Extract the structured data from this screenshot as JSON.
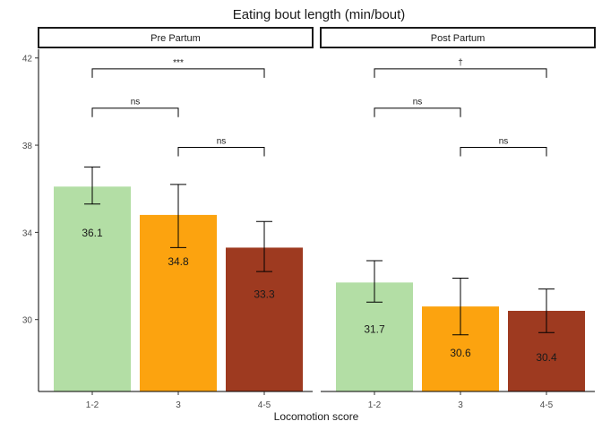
{
  "chart_data": {
    "type": "bar",
    "title": "Eating bout length (min/bout)",
    "xlabel": "Locomotion score",
    "ylabel": "",
    "ylim": [
      26.7,
      42.4
    ],
    "yticks": [
      30,
      34,
      38,
      42
    ],
    "grid": false,
    "categories": [
      "1-2",
      "3",
      "4-5"
    ],
    "colors": {
      "1-2": "#b3dea5",
      "3": "#fca30f",
      "4-5": "#9e3a20"
    },
    "panels": [
      {
        "name": "Pre Partum",
        "values": [
          36.1,
          34.8,
          33.3
        ],
        "labels": [
          "36.1",
          "34.8",
          "33.3"
        ],
        "error_low": [
          35.3,
          33.3,
          32.2
        ],
        "error_high": [
          37.0,
          36.2,
          34.5
        ],
        "comparisons": [
          {
            "from": "1-2",
            "to": "3",
            "label": "ns",
            "level": 39.7
          },
          {
            "from": "3",
            "to": "4-5",
            "label": "ns",
            "level": 37.9
          },
          {
            "from": "1-2",
            "to": "4-5",
            "label": "***",
            "level": 41.5
          }
        ]
      },
      {
        "name": "Post Partum",
        "values": [
          31.7,
          30.6,
          30.4
        ],
        "labels": [
          "31.7",
          "30.6",
          "30.4"
        ],
        "error_low": [
          30.8,
          29.3,
          29.4
        ],
        "error_high": [
          32.7,
          31.9,
          31.4
        ],
        "comparisons": [
          {
            "from": "1-2",
            "to": "3",
            "label": "ns",
            "level": 39.7
          },
          {
            "from": "3",
            "to": "4-5",
            "label": "ns",
            "level": 37.9
          },
          {
            "from": "1-2",
            "to": "4-5",
            "label": "†",
            "level": 41.5
          }
        ]
      }
    ]
  }
}
